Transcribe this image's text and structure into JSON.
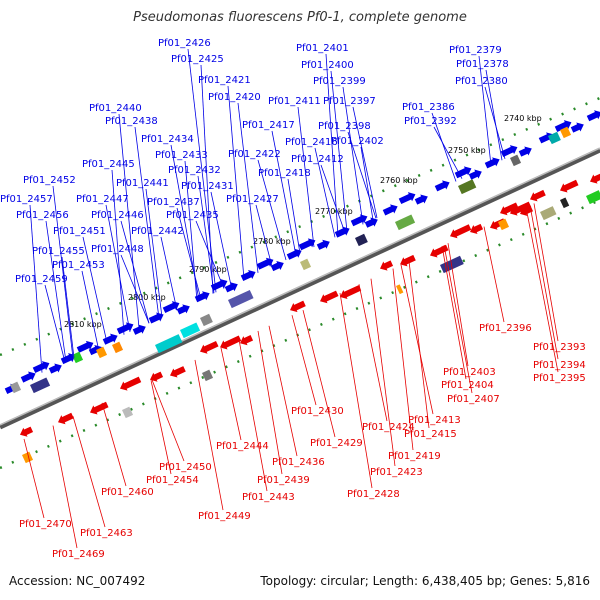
{
  "title": "Pseudomonas fluorescens Pf0-1, complete genome",
  "footer": {
    "accession": "Accession: NC_007492",
    "info": "Topology: circular; Length: 6,438,405 bp; Genes: 5,816"
  },
  "colors": {
    "forward": "#0000e6",
    "reverse": "#e60000",
    "backbone": "#777777"
  },
  "ticks": [
    "2740 kbp",
    "2750 kbp",
    "2760 kbp",
    "2770 kbp",
    "2780 kbp",
    "2790 kbp",
    "2800 kbp",
    "2810 kbp"
  ],
  "forward_labels": [
    "Pf01_2379",
    "Pf01_2378",
    "Pf01_2380",
    "Pf01_2386",
    "Pf01_2392",
    "Pf01_2401",
    "Pf01_2400",
    "Pf01_2399",
    "Pf01_2397",
    "Pf01_2398",
    "Pf01_2402",
    "Pf01_2411",
    "Pf01_2416",
    "Pf01_2412",
    "Pf01_2426",
    "Pf01_2425",
    "Pf01_2421",
    "Pf01_2420",
    "Pf01_2417",
    "Pf01_2422",
    "Pf01_2418",
    "Pf01_2427",
    "Pf01_2440",
    "Pf01_2438",
    "Pf01_2434",
    "Pf01_2433",
    "Pf01_2432",
    "Pf01_2431",
    "Pf01_2437",
    "Pf01_2435",
    "Pf01_2445",
    "Pf01_2441",
    "Pf01_2452",
    "Pf01_2447",
    "Pf01_2446",
    "Pf01_2457",
    "Pf01_2442",
    "Pf01_2456",
    "Pf01_2451",
    "Pf01_2448",
    "Pf01_2455",
    "Pf01_2453",
    "Pf01_2459"
  ],
  "reverse_labels": [
    "Pf01_2396",
    "Pf01_2393",
    "Pf01_2394",
    "Pf01_2395",
    "Pf01_2403",
    "Pf01_2404",
    "Pf01_2407",
    "Pf01_2413",
    "Pf01_2415",
    "Pf01_2430",
    "Pf01_2424",
    "Pf01_2429",
    "Pf01_2419",
    "Pf01_2423",
    "Pf01_2436",
    "Pf01_2428",
    "Pf01_2444",
    "Pf01_2439",
    "Pf01_2443",
    "Pf01_2450",
    "Pf01_2454",
    "Pf01_2460",
    "Pf01_2449",
    "Pf01_2463",
    "Pf01_2470",
    "Pf01_2469"
  ]
}
